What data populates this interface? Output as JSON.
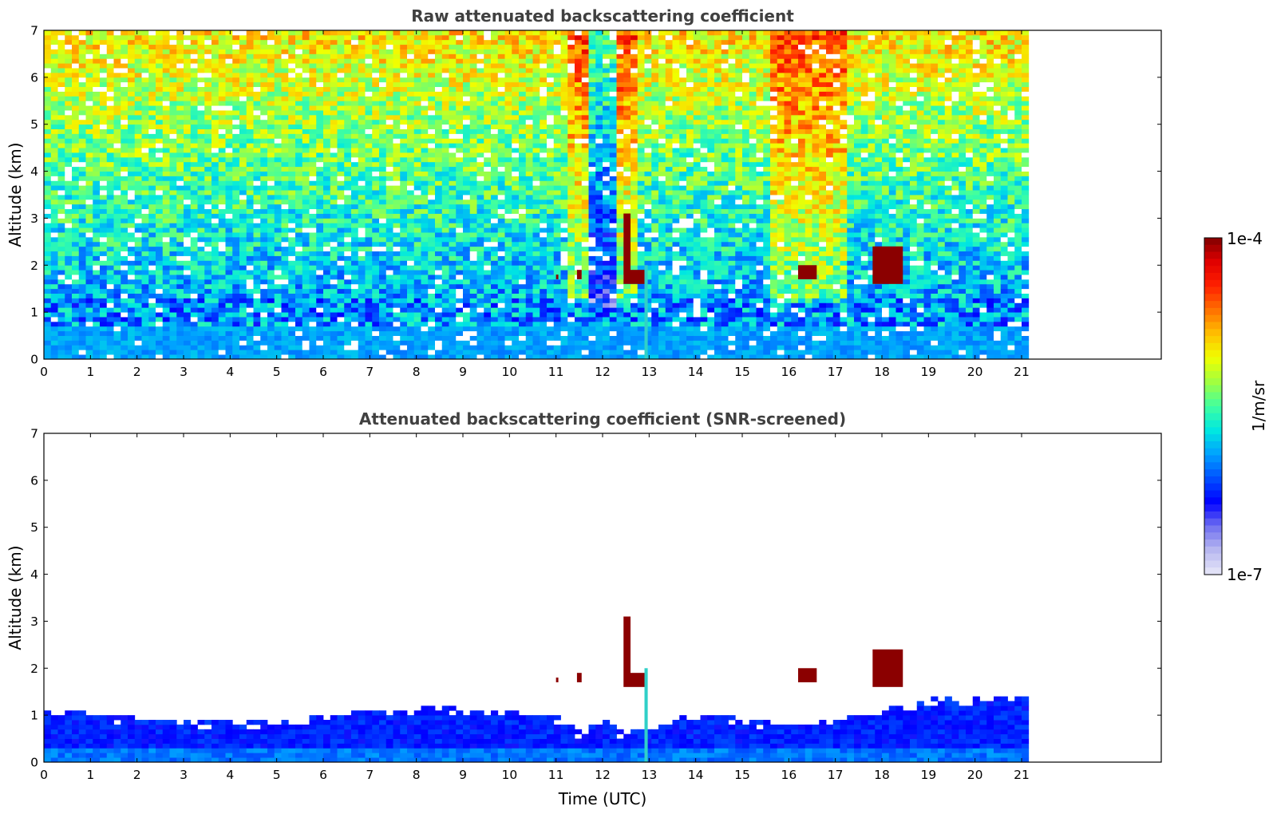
{
  "chart_data": [
    {
      "type": "heatmap",
      "title": "Raw attenuated backscattering coefficient",
      "xlabel": "",
      "ylabel": "Altitude (km)",
      "xlim": [
        0,
        24
      ],
      "ylim": [
        0,
        7
      ],
      "x_ticks": [
        "0",
        "1",
        "2",
        "3",
        "4",
        "5",
        "6",
        "7",
        "8",
        "9",
        "10",
        "11",
        "12",
        "13",
        "14",
        "15",
        "16",
        "17",
        "18",
        "19",
        "20",
        "21"
      ],
      "y_ticks": [
        "0",
        "1",
        "2",
        "3",
        "4",
        "5",
        "6",
        "7"
      ],
      "data_extent_x": [
        0,
        21.15
      ],
      "grid": false,
      "colormap": "jet",
      "features": [
        {
          "kind": "boundary_layer",
          "x": [
            0,
            21.15
          ],
          "y": [
            0,
            0.65
          ]
        },
        {
          "kind": "cloud",
          "x": [
            11.0,
            11.05
          ],
          "y": [
            1.7,
            1.8
          ]
        },
        {
          "kind": "cloud",
          "x": [
            11.45,
            11.55
          ],
          "y": [
            1.7,
            1.9
          ]
        },
        {
          "kind": "cloud",
          "x": [
            12.45,
            12.6
          ],
          "y": [
            1.6,
            3.1
          ]
        },
        {
          "kind": "cloud",
          "x": [
            12.6,
            12.95
          ],
          "y": [
            1.6,
            1.9
          ]
        },
        {
          "kind": "cloud",
          "x": [
            16.2,
            16.6
          ],
          "y": [
            1.7,
            2.0
          ]
        },
        {
          "kind": "cloud",
          "x": [
            17.8,
            18.45
          ],
          "y": [
            1.6,
            2.4
          ]
        },
        {
          "kind": "aerosol_plume",
          "x": [
            12.9,
            12.97
          ],
          "y": [
            0,
            2.0
          ]
        }
      ]
    },
    {
      "type": "heatmap",
      "title": "Attenuated backscattering coefficient (SNR-screened)",
      "xlabel": "Time (UTC)",
      "ylabel": "Altitude (km)",
      "xlim": [
        0,
        24
      ],
      "ylim": [
        0,
        7
      ],
      "x_ticks": [
        "0",
        "1",
        "2",
        "3",
        "4",
        "5",
        "6",
        "7",
        "8",
        "9",
        "10",
        "11",
        "12",
        "13",
        "14",
        "15",
        "16",
        "17",
        "18",
        "19",
        "20",
        "21"
      ],
      "y_ticks": [
        "0",
        "1",
        "2",
        "3",
        "4",
        "5",
        "6",
        "7"
      ],
      "data_extent_x": [
        0,
        21.15
      ],
      "grid": false,
      "colormap": "jet",
      "boundary_layer_top_km": [
        [
          0,
          1.05
        ],
        [
          1,
          1.0
        ],
        [
          2,
          0.9
        ],
        [
          3,
          0.85
        ],
        [
          4,
          0.8
        ],
        [
          5,
          0.85
        ],
        [
          6,
          0.95
        ],
        [
          7,
          1.05
        ],
        [
          8,
          1.1
        ],
        [
          9,
          1.1
        ],
        [
          10,
          1.05
        ],
        [
          11,
          0.95
        ],
        [
          11.5,
          0.6
        ],
        [
          12,
          0.85
        ],
        [
          12.5,
          0.55
        ],
        [
          13,
          0.7
        ],
        [
          14,
          1.0
        ],
        [
          15,
          0.9
        ],
        [
          16,
          0.75
        ],
        [
          17,
          0.85
        ],
        [
          18,
          1.05
        ],
        [
          19,
          1.3
        ],
        [
          20,
          1.35
        ],
        [
          21.15,
          1.4
        ]
      ],
      "features": [
        {
          "kind": "cloud",
          "x": [
            11.0,
            11.05
          ],
          "y": [
            1.7,
            1.8
          ]
        },
        {
          "kind": "cloud",
          "x": [
            11.45,
            11.55
          ],
          "y": [
            1.7,
            1.9
          ]
        },
        {
          "kind": "cloud",
          "x": [
            12.45,
            12.6
          ],
          "y": [
            1.6,
            3.1
          ]
        },
        {
          "kind": "cloud",
          "x": [
            12.6,
            12.95
          ],
          "y": [
            1.6,
            1.9
          ]
        },
        {
          "kind": "cloud",
          "x": [
            16.2,
            16.6
          ],
          "y": [
            1.7,
            2.0
          ]
        },
        {
          "kind": "cloud",
          "x": [
            17.8,
            18.45
          ],
          "y": [
            1.6,
            2.4
          ]
        },
        {
          "kind": "aerosol_plume",
          "x": [
            12.9,
            12.97
          ],
          "y": [
            0,
            2.0
          ]
        }
      ]
    }
  ],
  "colorbar": {
    "label": "1/m/sr",
    "min_label": "1e-7",
    "max_label": "1e-4",
    "scale": "log",
    "range": [
      1e-07,
      0.0001
    ],
    "colors": [
      "#e8e8f8",
      "#b8b8f0",
      "#7070f0",
      "#0000ff",
      "#0050ff",
      "#00a0ff",
      "#00e8e0",
      "#40ffa0",
      "#a0ff40",
      "#f0ff00",
      "#ffc000",
      "#ff7000",
      "#ff2000",
      "#e00000",
      "#800000"
    ]
  }
}
